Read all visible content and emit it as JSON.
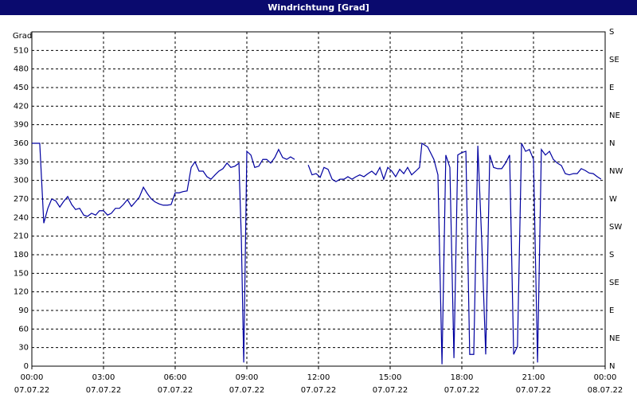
{
  "chart_data": {
    "type": "line",
    "title": "Windrichtung [Grad]",
    "y_label": "Grad",
    "x": [
      0,
      0.33,
      0.5,
      0.67,
      0.83,
      1.0,
      1.17,
      1.33,
      1.5,
      1.67,
      1.83,
      2.0,
      2.17,
      2.33,
      2.5,
      2.67,
      2.83,
      3.0,
      3.17,
      3.33,
      3.5,
      3.67,
      3.83,
      4.0,
      4.17,
      4.33,
      4.5,
      4.67,
      4.83,
      5.0,
      5.17,
      5.33,
      5.5,
      5.67,
      5.83,
      6.0,
      6.17,
      6.33,
      6.5,
      6.67,
      6.83,
      7.0,
      7.17,
      7.33,
      7.5,
      7.67,
      7.83,
      8.0,
      8.17,
      8.33,
      8.5,
      8.67,
      8.77,
      8.87,
      9.0,
      9.17,
      9.33,
      9.5,
      9.67,
      9.83,
      10.0,
      10.17,
      10.33,
      10.5,
      10.67,
      10.83,
      11.0,
      11.33,
      11.57,
      11.73,
      11.9,
      12.07,
      12.23,
      12.4,
      12.57,
      12.73,
      12.9,
      13.07,
      13.23,
      13.4,
      13.57,
      13.73,
      13.9,
      14.07,
      14.23,
      14.4,
      14.57,
      14.73,
      14.9,
      15.07,
      15.23,
      15.4,
      15.57,
      15.73,
      15.9,
      16.07,
      16.23,
      16.33,
      16.57,
      16.83,
      17.0,
      17.17,
      17.33,
      17.5,
      17.67,
      17.83,
      18.0,
      18.17,
      18.33,
      18.5,
      18.67,
      18.83,
      19.0,
      19.17,
      19.33,
      19.5,
      19.67,
      19.83,
      20.0,
      20.17,
      20.33,
      20.5,
      20.67,
      20.83,
      21.0,
      21.17,
      21.33,
      21.5,
      21.67,
      21.83,
      22.0,
      22.17,
      22.33,
      22.5,
      22.67,
      22.83,
      23.0,
      23.17,
      23.33,
      23.5,
      23.67,
      23.83
    ],
    "series": [
      {
        "name": "Windrichtung",
        "color": "#0000a0",
        "values": [
          360,
          360,
          231,
          255,
          270,
          267,
          257,
          266,
          274,
          261,
          253,
          255,
          244,
          242,
          247,
          244,
          251,
          251,
          244,
          247,
          255,
          255,
          261,
          269,
          258,
          265,
          273,
          289,
          279,
          270,
          265,
          262,
          260,
          260,
          261,
          280,
          280,
          282,
          283,
          321,
          330,
          315,
          315,
          306,
          302,
          309,
          315,
          319,
          328,
          321,
          323,
          328,
          206,
          6,
          347,
          341,
          321,
          323,
          334,
          334,
          328,
          337,
          350,
          337,
          334,
          338,
          334,
          null,
          325,
          309,
          311,
          305,
          321,
          318,
          302,
          298,
          302,
          302,
          306,
          302,
          306,
          309,
          306,
          311,
          315,
          309,
          321,
          302,
          321,
          315,
          306,
          318,
          311,
          321,
          309,
          315,
          321,
          360,
          354,
          334,
          309,
          3,
          341,
          321,
          13,
          341,
          345,
          347,
          19,
          19,
          356,
          206,
          19,
          341,
          321,
          319,
          319,
          328,
          341,
          19,
          32,
          360,
          347,
          350,
          334,
          6,
          350,
          341,
          347,
          334,
          328,
          324,
          311,
          309,
          311,
          311,
          319,
          316,
          312,
          311,
          306,
          302
        ]
      }
    ],
    "xlim": [
      0,
      24
    ],
    "xticks": [
      {
        "value": 0,
        "label": "00:00"
      },
      {
        "value": 3,
        "label": "03:00"
      },
      {
        "value": 6,
        "label": "06:00"
      },
      {
        "value": 9,
        "label": "09:00"
      },
      {
        "value": 12,
        "label": "12:00"
      },
      {
        "value": 15,
        "label": "15:00"
      },
      {
        "value": 18,
        "label": "18:00"
      },
      {
        "value": 21,
        "label": "21:00"
      },
      {
        "value": 24,
        "label": "00:00"
      }
    ],
    "xtick_dates": [
      "07.07.22",
      "07.07.22",
      "07.07.22",
      "07.07.22",
      "07.07.22",
      "07.07.22",
      "07.07.22",
      "07.07.22",
      "08.07.22"
    ],
    "ylim": [
      0,
      540
    ],
    "yticks": [
      0,
      30,
      60,
      90,
      120,
      150,
      180,
      210,
      240,
      270,
      300,
      330,
      360,
      390,
      420,
      450,
      480,
      510
    ],
    "y2lim": [
      0,
      540
    ],
    "y2ticks": [
      {
        "value": 0,
        "label": "N"
      },
      {
        "value": 45,
        "label": "NE"
      },
      {
        "value": 90,
        "label": "E"
      },
      {
        "value": 135,
        "label": "SE"
      },
      {
        "value": 180,
        "label": "S"
      },
      {
        "value": 225,
        "label": "SW"
      },
      {
        "value": 270,
        "label": "W"
      },
      {
        "value": 315,
        "label": "NW"
      },
      {
        "value": 360,
        "label": "N"
      },
      {
        "value": 405,
        "label": "NE"
      },
      {
        "value": 450,
        "label": "E"
      },
      {
        "value": 495,
        "label": "SE"
      },
      {
        "value": 540,
        "label": "S"
      }
    ],
    "grid": true
  }
}
